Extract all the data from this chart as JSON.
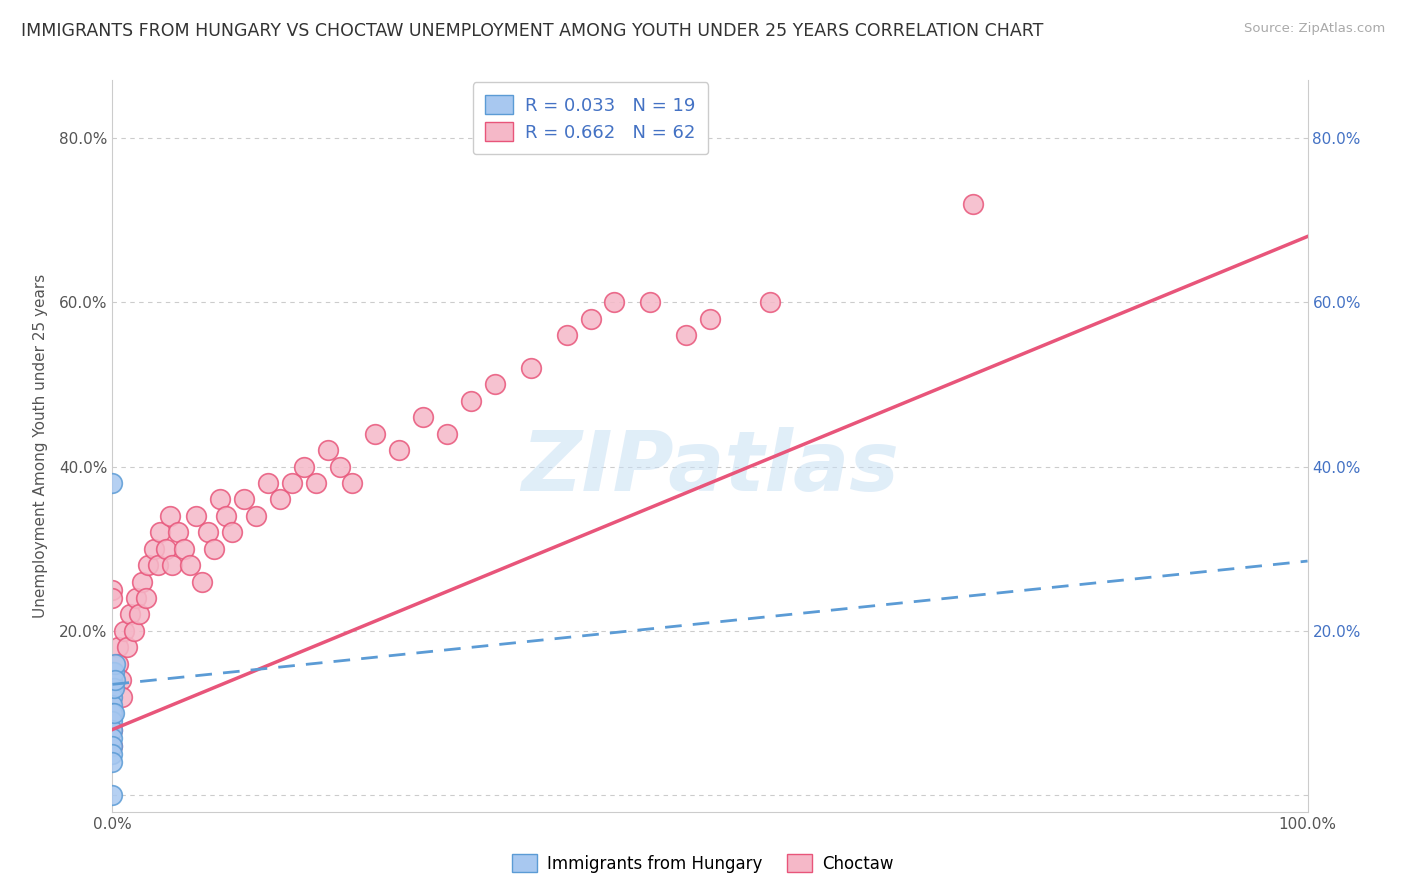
{
  "title": "IMMIGRANTS FROM HUNGARY VS CHOCTAW UNEMPLOYMENT AMONG YOUTH UNDER 25 YEARS CORRELATION CHART",
  "source": "Source: ZipAtlas.com",
  "ylabel": "Unemployment Among Youth under 25 years",
  "xlim": [
    0,
    1.0
  ],
  "ylim": [
    -0.02,
    0.87
  ],
  "x_ticks": [
    0.0,
    0.2,
    0.4,
    0.6,
    0.8,
    1.0
  ],
  "x_tick_labels": [
    "0.0%",
    "",
    "",
    "",
    "",
    "100.0%"
  ],
  "y_ticks": [
    0.0,
    0.2,
    0.4,
    0.6,
    0.8
  ],
  "y_tick_labels": [
    "",
    "20.0%",
    "40.0%",
    "60.0%",
    "80.0%"
  ],
  "right_y_ticks": [
    0.2,
    0.4,
    0.6,
    0.8
  ],
  "right_y_tick_labels": [
    "20.0%",
    "40.0%",
    "60.0%",
    "80.0%"
  ],
  "legend_R1": "R = 0.033",
  "legend_N1": "N = 19",
  "legend_R2": "R = 0.662",
  "legend_N2": "N = 62",
  "blue_color": "#A8C8F0",
  "pink_color": "#F5B8C8",
  "blue_edge_color": "#5B9BD5",
  "pink_edge_color": "#E8557A",
  "blue_line_color": "#5B9BD5",
  "pink_line_color": "#E8557A",
  "text_color": "#4472C4",
  "background_color": "#FFFFFF",
  "watermark": "ZIPatlas",
  "hungary_x": [
    0.0,
    0.0,
    0.0,
    0.0,
    0.0,
    0.0,
    0.0,
    0.0,
    0.0,
    0.0,
    0.0,
    0.0,
    0.0,
    0.001,
    0.001,
    0.001,
    0.002,
    0.002,
    0.0
  ],
  "hungary_y": [
    0.38,
    0.15,
    0.14,
    0.13,
    0.12,
    0.11,
    0.1,
    0.09,
    0.08,
    0.07,
    0.06,
    0.05,
    0.04,
    0.15,
    0.13,
    0.1,
    0.16,
    0.14,
    0.0
  ],
  "choctaw_x": [
    0.0,
    0.0,
    0.0,
    0.0,
    0.0,
    0.0,
    0.0,
    0.0,
    0.005,
    0.005,
    0.007,
    0.008,
    0.01,
    0.012,
    0.015,
    0.018,
    0.02,
    0.022,
    0.025,
    0.028,
    0.03,
    0.035,
    0.038,
    0.04,
    0.045,
    0.048,
    0.05,
    0.055,
    0.06,
    0.065,
    0.07,
    0.075,
    0.08,
    0.085,
    0.09,
    0.095,
    0.1,
    0.11,
    0.12,
    0.13,
    0.14,
    0.15,
    0.16,
    0.17,
    0.18,
    0.19,
    0.2,
    0.22,
    0.24,
    0.26,
    0.28,
    0.3,
    0.32,
    0.35,
    0.38,
    0.4,
    0.42,
    0.45,
    0.48,
    0.5,
    0.55,
    0.72
  ],
  "choctaw_y": [
    0.25,
    0.24,
    0.15,
    0.14,
    0.12,
    0.1,
    0.08,
    0.06,
    0.18,
    0.16,
    0.14,
    0.12,
    0.2,
    0.18,
    0.22,
    0.2,
    0.24,
    0.22,
    0.26,
    0.24,
    0.28,
    0.3,
    0.28,
    0.32,
    0.3,
    0.34,
    0.28,
    0.32,
    0.3,
    0.28,
    0.34,
    0.26,
    0.32,
    0.3,
    0.36,
    0.34,
    0.32,
    0.36,
    0.34,
    0.38,
    0.36,
    0.38,
    0.4,
    0.38,
    0.42,
    0.4,
    0.38,
    0.44,
    0.42,
    0.46,
    0.44,
    0.48,
    0.5,
    0.52,
    0.56,
    0.58,
    0.6,
    0.6,
    0.56,
    0.58,
    0.6,
    0.72
  ],
  "hungary_trend_x": [
    0.0,
    1.0
  ],
  "hungary_trend_y": [
    0.135,
    0.285
  ],
  "choctaw_trend_x": [
    0.0,
    1.0
  ],
  "choctaw_trend_y": [
    0.08,
    0.68
  ]
}
